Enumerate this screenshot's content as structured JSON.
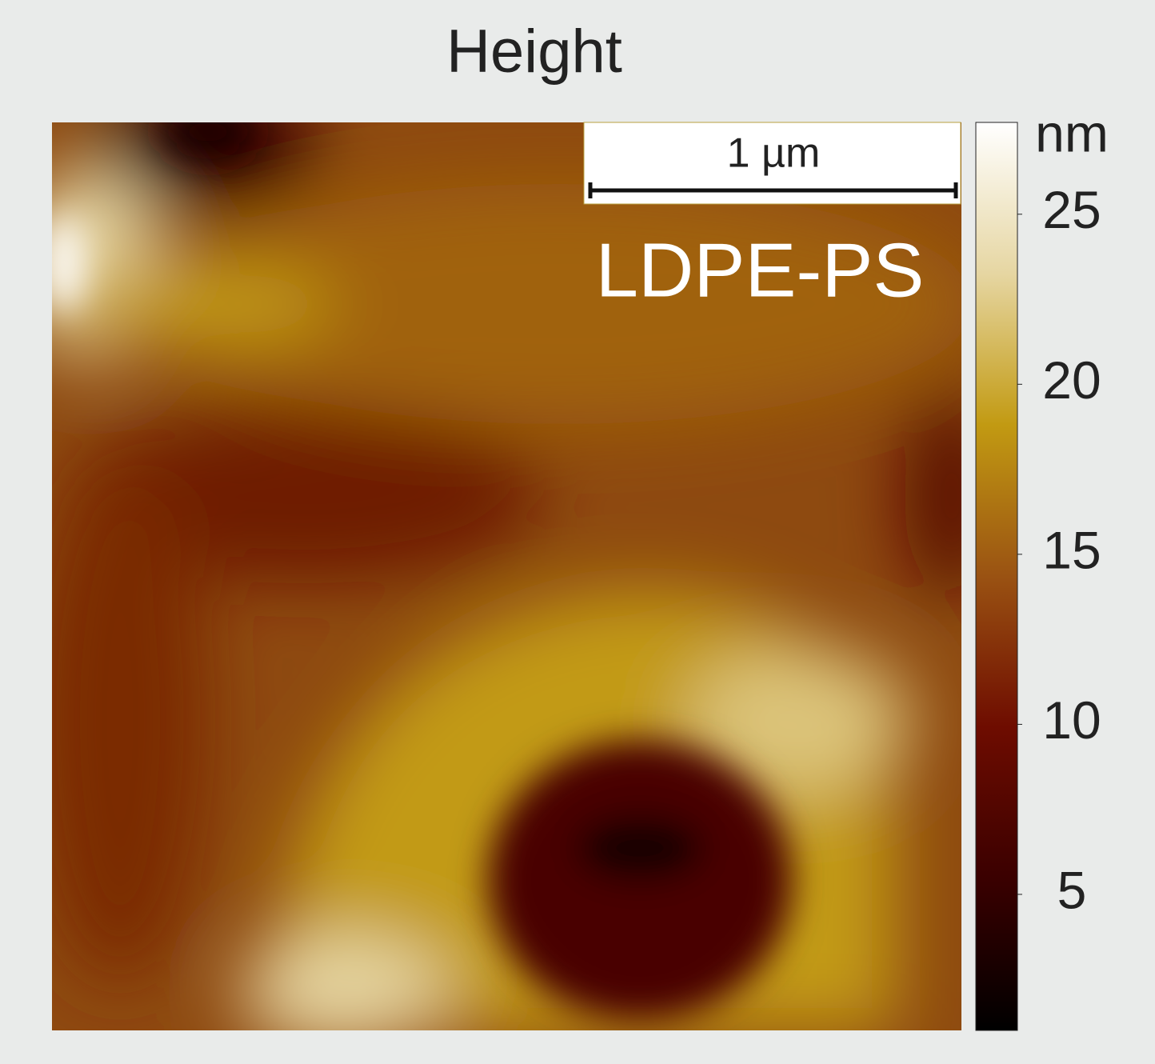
{
  "chart_data": {
    "type": "afm-height-map",
    "title": "Height",
    "label": "LDPE-PS",
    "scale_bar": "1 µm",
    "colorbar": {
      "unit": "nm",
      "lim": [
        1,
        27.7
      ],
      "ticks": [
        5,
        10,
        15,
        20,
        25
      ],
      "colormap": [
        "#000000",
        "#3a0000",
        "#6e0c00",
        "#9a5212",
        "#c29a12",
        "#e6d6a2",
        "#ffffff"
      ]
    }
  }
}
